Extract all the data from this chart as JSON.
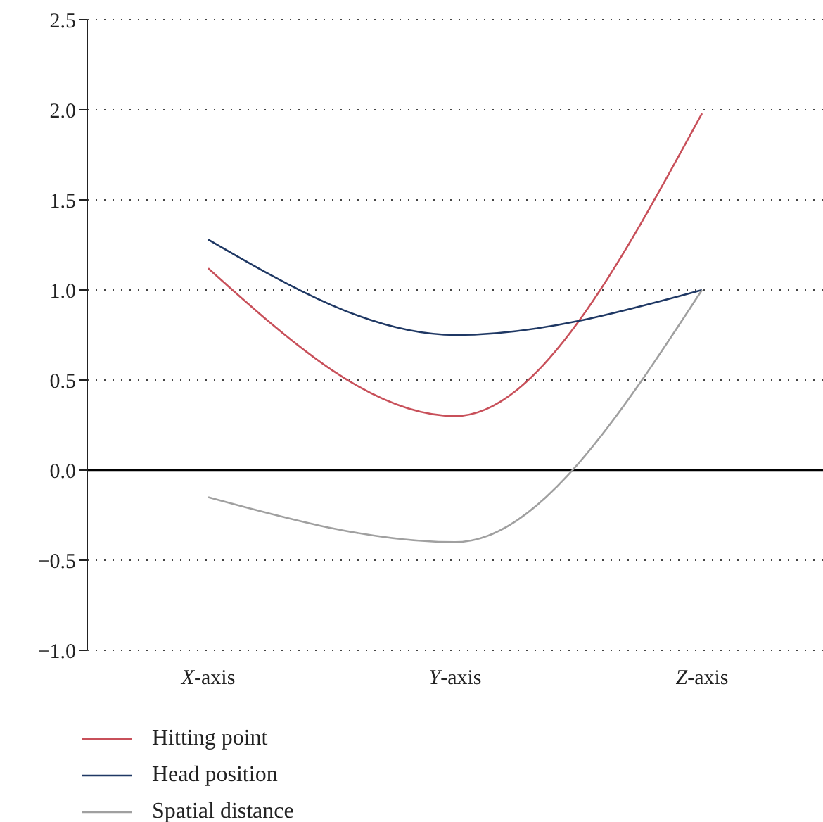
{
  "chart_data": {
    "type": "line",
    "categories": [
      "X-axis",
      "Y-axis",
      "Z-axis"
    ],
    "series": [
      {
        "name": "Hitting point",
        "color": "#c8505a",
        "values": [
          1.12,
          0.3,
          1.98
        ]
      },
      {
        "name": "Head position",
        "color": "#1f3864",
        "values": [
          1.28,
          0.75,
          1.0
        ]
      },
      {
        "name": "Spatial distance",
        "color": "#a0a0a0",
        "values": [
          -0.15,
          -0.4,
          1.0
        ]
      }
    ],
    "ylim": [
      -1.0,
      2.5
    ],
    "yticks": [
      {
        "value": -1,
        "label": "−1.0"
      },
      {
        "value": -0.5,
        "label": "−0.5"
      },
      {
        "value": 0,
        "label": "0.0"
      },
      {
        "value": 0.5,
        "label": "0.5"
      },
      {
        "value": 1,
        "label": "1.0"
      },
      {
        "value": 1.5,
        "label": "1.5"
      },
      {
        "value": 2,
        "label": "2.0"
      },
      {
        "value": 2.5,
        "label": "2.5"
      }
    ],
    "grid": "y",
    "legend": "bottom left",
    "marker": "none",
    "line_style": "solid",
    "ref_lines": [
      {
        "axis": "y",
        "value": 0,
        "color": "#000000"
      }
    ]
  }
}
